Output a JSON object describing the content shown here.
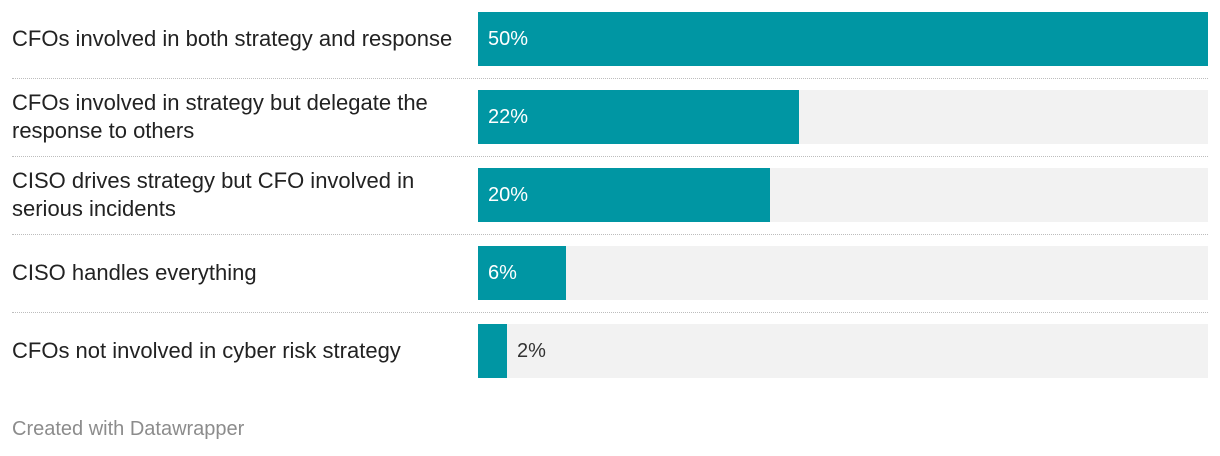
{
  "chart_data": {
    "type": "bar",
    "orientation": "horizontal",
    "categories": [
      "CFOs involved in both strategy and response",
      "CFOs involved in strategy but delegate the response to others",
      "CISO drives strategy but CFO involved in serious incidents",
      "CISO handles everything",
      "CFOs not involved in cyber risk strategy"
    ],
    "values": [
      50,
      22,
      20,
      6,
      2
    ],
    "value_labels": [
      "50%",
      "22%",
      "20%",
      "6%",
      "2%"
    ],
    "xlim": [
      0,
      50
    ],
    "unit": "%",
    "grid": false,
    "bar_color": "#0096a3",
    "track_color": "#f2f2f2"
  },
  "footer": {
    "credit": "Created with Datawrapper"
  }
}
